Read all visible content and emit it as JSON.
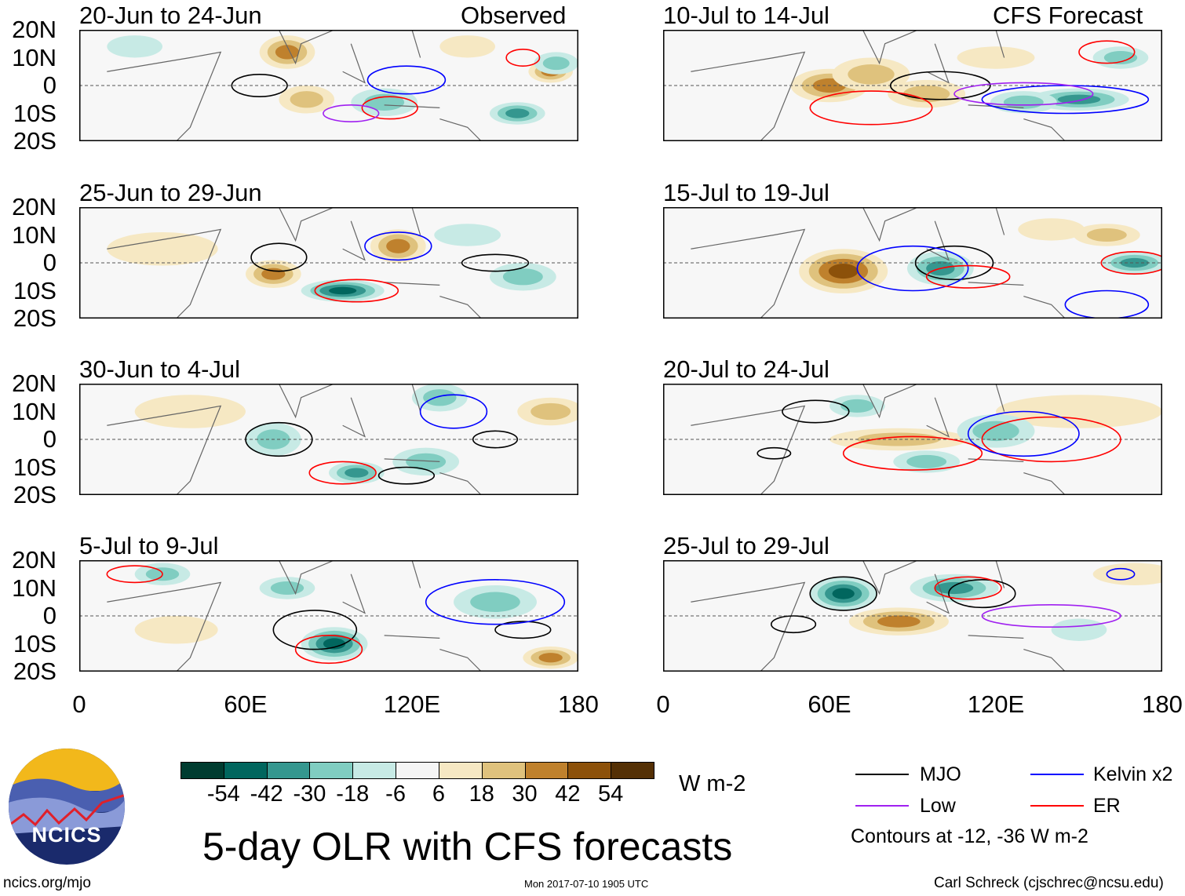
{
  "header": {
    "observed_label": "Observed",
    "forecast_label": "CFS Forecast"
  },
  "lat_labels": [
    "20N",
    "10N",
    "0",
    "10S",
    "20S"
  ],
  "lon_labels": [
    "0",
    "60E",
    "120E",
    "180"
  ],
  "panels": [
    {
      "title": "20-Jun to 24-Jun",
      "column": "observed",
      "features": [
        [
          75,
          12,
          10,
          6,
          42
        ],
        [
          82,
          -5,
          10,
          5,
          30
        ],
        [
          170,
          5,
          8,
          4,
          42
        ],
        [
          110,
          -6,
          12,
          5,
          -30
        ],
        [
          158,
          -10,
          10,
          4,
          -42
        ],
        [
          172,
          8,
          8,
          4,
          -30
        ],
        [
          20,
          14,
          10,
          4,
          -18
        ],
        [
          140,
          14,
          10,
          4,
          18
        ]
      ],
      "contours": [
        [
          65,
          0,
          10,
          4,
          "MJO"
        ],
        [
          112,
          -8,
          10,
          4,
          "ER"
        ],
        [
          98,
          -10,
          10,
          3,
          "Low"
        ],
        [
          118,
          2,
          14,
          5,
          "Kelvin"
        ],
        [
          160,
          10,
          6,
          3,
          "ER"
        ]
      ]
    },
    {
      "title": "10-Jul to 14-Jul",
      "column": "forecast",
      "features": [
        [
          60,
          0,
          14,
          6,
          42
        ],
        [
          75,
          4,
          14,
          6,
          30
        ],
        [
          95,
          -3,
          14,
          5,
          30
        ],
        [
          150,
          -5,
          18,
          4,
          -42
        ],
        [
          130,
          -6,
          12,
          4,
          -30
        ],
        [
          165,
          10,
          10,
          4,
          -30
        ],
        [
          120,
          10,
          14,
          4,
          18
        ]
      ],
      "contours": [
        [
          100,
          0,
          18,
          5,
          "MJO"
        ],
        [
          75,
          -8,
          22,
          6,
          "ER"
        ],
        [
          145,
          -5,
          30,
          5,
          "Kelvin"
        ],
        [
          130,
          -3,
          25,
          4,
          "Low"
        ],
        [
          160,
          12,
          10,
          4,
          "ER"
        ]
      ]
    },
    {
      "title": "25-Jun to 29-Jun",
      "column": "observed",
      "features": [
        [
          70,
          -4,
          10,
          5,
          42
        ],
        [
          115,
          6,
          10,
          6,
          42
        ],
        [
          95,
          -10,
          15,
          4,
          -54
        ],
        [
          160,
          -5,
          12,
          5,
          -30
        ],
        [
          140,
          10,
          12,
          4,
          -18
        ],
        [
          30,
          5,
          20,
          6,
          18
        ]
      ],
      "contours": [
        [
          72,
          2,
          10,
          5,
          "MJO"
        ],
        [
          100,
          -10,
          15,
          4,
          "ER"
        ],
        [
          115,
          6,
          12,
          5,
          "Kelvin"
        ],
        [
          150,
          0,
          12,
          3,
          "MJO"
        ]
      ]
    },
    {
      "title": "15-Jul to 19-Jul",
      "column": "forecast",
      "features": [
        [
          65,
          -3,
          16,
          8,
          54
        ],
        [
          100,
          -2,
          12,
          6,
          -42
        ],
        [
          170,
          0,
          12,
          4,
          -42
        ],
        [
          160,
          10,
          12,
          4,
          30
        ],
        [
          140,
          12,
          12,
          4,
          18
        ]
      ],
      "contours": [
        [
          105,
          0,
          14,
          6,
          "MJO"
        ],
        [
          90,
          -2,
          20,
          8,
          "Kelvin"
        ],
        [
          110,
          -5,
          15,
          4,
          "ER"
        ],
        [
          170,
          0,
          12,
          4,
          "ER"
        ],
        [
          160,
          -15,
          15,
          5,
          "Kelvin"
        ]
      ]
    },
    {
      "title": "30-Jun to 4-Jul",
      "column": "observed",
      "features": [
        [
          70,
          0,
          10,
          6,
          -30
        ],
        [
          100,
          -12,
          10,
          4,
          -42
        ],
        [
          125,
          -8,
          12,
          5,
          -30
        ],
        [
          130,
          15,
          10,
          5,
          -30
        ],
        [
          170,
          10,
          12,
          5,
          30
        ],
        [
          40,
          10,
          20,
          6,
          18
        ]
      ],
      "contours": [
        [
          72,
          0,
          12,
          6,
          "MJO"
        ],
        [
          95,
          -12,
          12,
          4,
          "ER"
        ],
        [
          118,
          -13,
          10,
          3,
          "MJO"
        ],
        [
          150,
          0,
          8,
          3,
          "MJO"
        ],
        [
          135,
          10,
          12,
          6,
          "Kelvin"
        ]
      ]
    },
    {
      "title": "20-Jul to 24-Jul",
      "column": "forecast",
      "features": [
        [
          85,
          0,
          25,
          4,
          30
        ],
        [
          150,
          10,
          30,
          6,
          18
        ],
        [
          120,
          3,
          14,
          6,
          -30
        ],
        [
          95,
          -8,
          12,
          4,
          -30
        ],
        [
          70,
          12,
          10,
          4,
          -30
        ]
      ],
      "contours": [
        [
          55,
          10,
          12,
          4,
          "MJO"
        ],
        [
          40,
          -5,
          6,
          2,
          "MJO"
        ],
        [
          90,
          -5,
          25,
          6,
          "ER"
        ],
        [
          140,
          0,
          25,
          8,
          "ER"
        ],
        [
          130,
          2,
          20,
          8,
          "Kelvin"
        ]
      ]
    },
    {
      "title": "5-Jul to 9-Jul",
      "column": "observed",
      "features": [
        [
          92,
          -10,
          12,
          6,
          -54
        ],
        [
          75,
          10,
          10,
          4,
          -30
        ],
        [
          150,
          5,
          15,
          6,
          -30
        ],
        [
          30,
          15,
          10,
          4,
          -30
        ],
        [
          170,
          -15,
          10,
          4,
          42
        ],
        [
          35,
          -5,
          15,
          5,
          18
        ]
      ],
      "contours": [
        [
          85,
          -5,
          15,
          7,
          "MJO"
        ],
        [
          90,
          -12,
          12,
          5,
          "ER"
        ],
        [
          160,
          -5,
          10,
          3,
          "MJO"
        ],
        [
          20,
          15,
          10,
          3,
          "ER"
        ],
        [
          150,
          5,
          25,
          8,
          "Kelvin"
        ]
      ]
    },
    {
      "title": "25-Jul to 29-Jul",
      "column": "forecast",
      "features": [
        [
          65,
          8,
          12,
          6,
          -54
        ],
        [
          105,
          10,
          16,
          5,
          -42
        ],
        [
          85,
          -2,
          18,
          5,
          42
        ],
        [
          150,
          -5,
          10,
          4,
          -18
        ],
        [
          170,
          15,
          15,
          4,
          18
        ]
      ],
      "contours": [
        [
          65,
          8,
          12,
          6,
          "MJO"
        ],
        [
          47,
          -3,
          8,
          3,
          "MJO"
        ],
        [
          115,
          8,
          12,
          5,
          "MJO"
        ],
        [
          110,
          10,
          12,
          4,
          "ER"
        ],
        [
          140,
          0,
          25,
          4,
          "Low"
        ],
        [
          165,
          15,
          5,
          2,
          "Kelvin"
        ]
      ]
    }
  ],
  "colorbar": {
    "labels": [
      "-54",
      "-42",
      "-30",
      "-18",
      "-6",
      "6",
      "18",
      "30",
      "42",
      "54"
    ],
    "colors": [
      "#003c30",
      "#01665e",
      "#35978f",
      "#80cdc1",
      "#c7eae5",
      "#f5f5f5",
      "#f6e8c3",
      "#dfc27d",
      "#bf812d",
      "#8c510a",
      "#543005"
    ],
    "bounds": [
      -54,
      -42,
      -30,
      -18,
      -6,
      6,
      18,
      30,
      42,
      54
    ],
    "units": "W m-2"
  },
  "legend": {
    "items": [
      {
        "label": "MJO",
        "color": "#000000"
      },
      {
        "label": "Kelvin x2",
        "color": "#0000ff"
      },
      {
        "label": "Low",
        "color": "#a020f0"
      },
      {
        "label": "ER",
        "color": "#ff0000"
      }
    ],
    "note": "Contours at -12, -36 W m-2"
  },
  "footer": {
    "main_title": "5-day OLR with CFS forecasts",
    "url": "ncics.org/mjo",
    "timestamp": "Mon 2017-07-10 1905 UTC",
    "credit": "Carl Schreck (cjschrec@ncsu.edu)",
    "logo_text": "NCICS"
  }
}
